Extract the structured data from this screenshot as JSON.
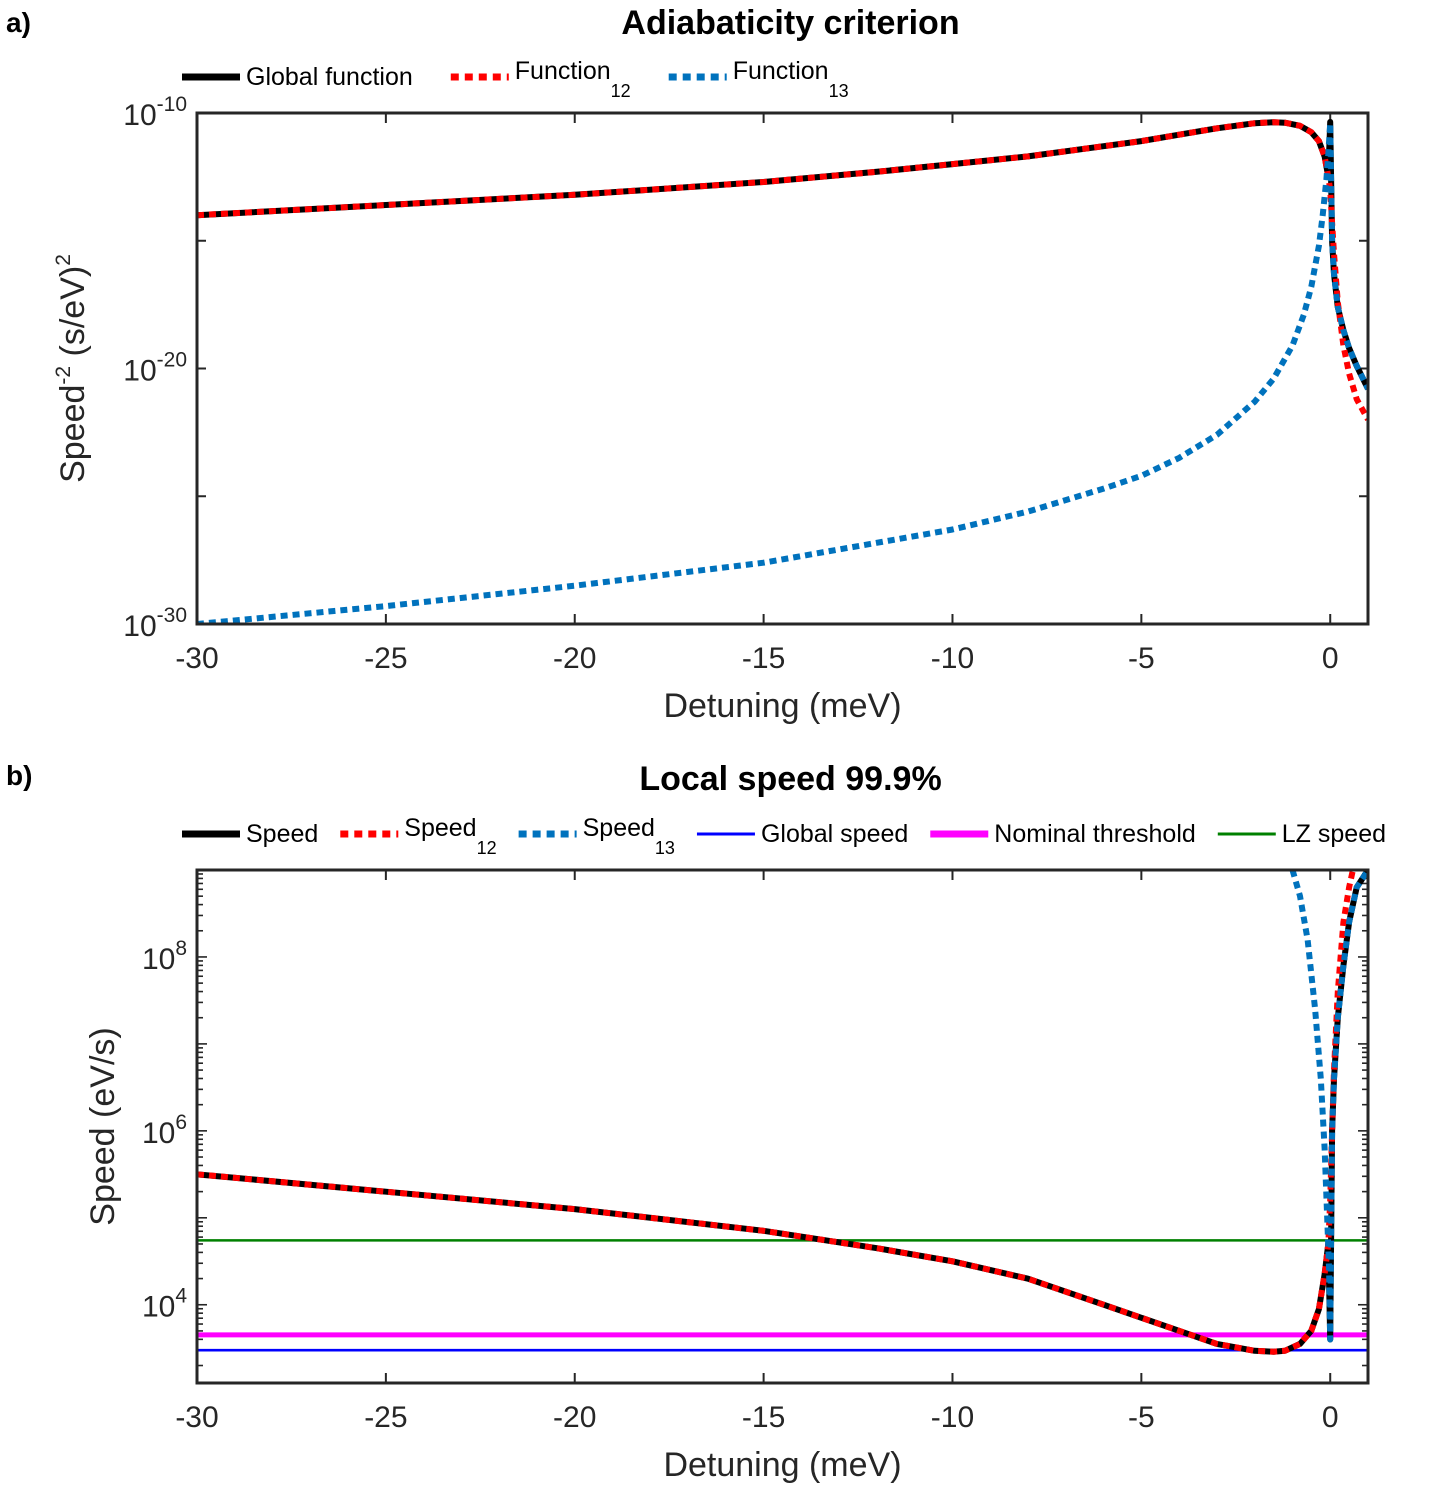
{
  "chart_data": [
    {
      "panel_label": "a)",
      "type": "line",
      "title": "Adiabaticity criterion",
      "xlabel": "Detuning (meV)",
      "ylabel": {
        "base": "Speed",
        "sup": "-2",
        "unit": " (s/eV)",
        "unit_sup": "2"
      },
      "yscale": "log",
      "xlim": [
        -30,
        1
      ],
      "ylim_exp": [
        -30,
        -10
      ],
      "xticks": [
        -30,
        -25,
        -20,
        -15,
        -10,
        -5,
        0
      ],
      "xtick_labels": [
        "-30",
        "-25",
        "-20",
        "-15",
        "-10",
        "-5",
        "0"
      ],
      "yticks_exp": [
        -30,
        -20,
        -10
      ],
      "ytick_base": "10",
      "ytick_exp_labels": [
        "-30",
        "-20",
        "-10"
      ],
      "legend": [
        {
          "label": "Global function",
          "sub": "",
          "color": "#000000",
          "style": "solid"
        },
        {
          "label": "Function",
          "sub": "12",
          "color": "#ff0000",
          "style": "dotted"
        },
        {
          "label": "Function",
          "sub": "13",
          "color": "#0072bd",
          "style": "dotted"
        }
      ],
      "series": [
        {
          "name": "Global function",
          "color": "#000000",
          "style": "solid",
          "x": [
            -30,
            -25,
            -20,
            -15,
            -12,
            -10,
            -8,
            -6,
            -5,
            -4,
            -3,
            -2,
            -1.5,
            -1.2,
            -0.8,
            -0.5,
            -0.3,
            -0.15,
            -0.05,
            0,
            0.05,
            0.1,
            0.2,
            0.35,
            0.5,
            0.7,
            1.0
          ],
          "y_log10": [
            -14.0,
            -13.6,
            -13.2,
            -12.7,
            -12.3,
            -12.0,
            -11.7,
            -11.3,
            -11.1,
            -10.85,
            -10.6,
            -10.4,
            -10.36,
            -10.38,
            -10.5,
            -10.75,
            -11.1,
            -11.7,
            -12.5,
            -10.35,
            -15.0,
            -16.3,
            -17.6,
            -18.5,
            -19.2,
            -19.9,
            -20.8
          ]
        },
        {
          "name": "Function_12",
          "color": "#ff0000",
          "style": "dotted",
          "x": [
            -30,
            -25,
            -20,
            -15,
            -12,
            -10,
            -8,
            -6,
            -5,
            -4,
            -3,
            -2,
            -1.5,
            -1.2,
            -0.8,
            -0.5,
            -0.3,
            -0.15,
            -0.05,
            0,
            0.05,
            0.1,
            0.2,
            0.35,
            0.5,
            0.7,
            1.0
          ],
          "y_log10": [
            -14.0,
            -13.6,
            -13.2,
            -12.7,
            -12.3,
            -12.0,
            -11.7,
            -11.3,
            -11.1,
            -10.85,
            -10.6,
            -10.4,
            -10.36,
            -10.38,
            -10.5,
            -10.75,
            -11.1,
            -11.7,
            -12.5,
            -13.0,
            -14.3,
            -15.5,
            -17.4,
            -19.1,
            -20.2,
            -21.2,
            -22.0
          ]
        },
        {
          "name": "Function_13",
          "color": "#0072bd",
          "style": "dotted",
          "x": [
            -30,
            -25,
            -20,
            -15,
            -10,
            -8,
            -6,
            -5,
            -4,
            -3,
            -2,
            -1.5,
            -1,
            -0.7,
            -0.5,
            -0.3,
            -0.2,
            -0.1,
            -0.05,
            0,
            0.05,
            0.1,
            0.2,
            0.35,
            0.5,
            0.7,
            1.0
          ],
          "y_log10": [
            -30.0,
            -29.3,
            -28.5,
            -27.6,
            -26.3,
            -25.6,
            -24.7,
            -24.2,
            -23.5,
            -22.6,
            -21.3,
            -20.4,
            -19.1,
            -17.9,
            -16.8,
            -15.2,
            -14.0,
            -12.6,
            -11.6,
            -10.4,
            -15.0,
            -16.3,
            -17.6,
            -18.5,
            -19.2,
            -19.9,
            -20.8
          ]
        }
      ]
    },
    {
      "panel_label": "b)",
      "type": "line",
      "title": "Local speed 99.9%",
      "xlabel": "Detuning (meV)",
      "ylabel": {
        "base": "Speed (eV/s)",
        "sup": "",
        "unit": "",
        "unit_sup": ""
      },
      "yscale": "log",
      "xlim": [
        -30,
        1
      ],
      "ylim_exp": [
        3.1,
        9.0
      ],
      "xticks": [
        -30,
        -25,
        -20,
        -15,
        -10,
        -5,
        0
      ],
      "xtick_labels": [
        "-30",
        "-25",
        "-20",
        "-15",
        "-10",
        "-5",
        "0"
      ],
      "yticks_exp": [
        4,
        6,
        8
      ],
      "ytick_base": "10",
      "ytick_exp_labels": [
        "4",
        "6",
        "8"
      ],
      "legend": [
        {
          "label": "Speed",
          "sub": "",
          "color": "#000000",
          "style": "solid"
        },
        {
          "label": "Speed",
          "sub": "12",
          "color": "#ff0000",
          "style": "dotted"
        },
        {
          "label": "Speed",
          "sub": "13",
          "color": "#0072bd",
          "style": "dotted"
        },
        {
          "label": "Global speed",
          "sub": "",
          "color": "#0000ff",
          "style": "solid-thin"
        },
        {
          "label": "Nominal threshold",
          "sub": "",
          "color": "#ff00ff",
          "style": "solid"
        },
        {
          "label": "LZ speed",
          "sub": "",
          "color": "#008000",
          "style": "solid-thin"
        }
      ],
      "hlines": [
        {
          "name": "LZ speed",
          "y": 55000,
          "color": "#008000"
        },
        {
          "name": "Nominal threshold",
          "y": 4500,
          "color": "#ff00ff"
        },
        {
          "name": "Global speed",
          "y": 3000,
          "color": "#0000ff"
        }
      ],
      "series": [
        {
          "name": "Speed",
          "color": "#000000",
          "style": "solid",
          "x": [
            -30,
            -25,
            -20,
            -15,
            -12,
            -10,
            -8,
            -6,
            -5,
            -4,
            -3,
            -2,
            -1.5,
            -1.2,
            -0.8,
            -0.5,
            -0.3,
            -0.15,
            -0.05,
            0,
            0.05,
            0.1,
            0.2,
            0.35,
            0.5,
            0.7,
            1.0
          ],
          "y_log10": [
            5.5,
            5.3,
            5.1,
            4.85,
            4.65,
            4.5,
            4.3,
            4.0,
            3.85,
            3.7,
            3.55,
            3.47,
            3.46,
            3.47,
            3.55,
            3.7,
            3.95,
            4.35,
            4.7,
            3.6,
            6.0,
            6.6,
            7.3,
            7.9,
            8.4,
            8.8,
            9.0
          ]
        },
        {
          "name": "Speed_12",
          "color": "#ff0000",
          "style": "dotted",
          "x": [
            -30,
            -25,
            -20,
            -15,
            -12,
            -10,
            -8,
            -6,
            -5,
            -4,
            -3,
            -2,
            -1.5,
            -1.2,
            -0.8,
            -0.5,
            -0.3,
            -0.15,
            -0.05,
            0,
            0.05,
            0.1,
            0.2,
            0.35,
            0.5,
            0.6
          ],
          "y_log10": [
            5.5,
            5.3,
            5.1,
            4.85,
            4.65,
            4.5,
            4.3,
            4.0,
            3.85,
            3.7,
            3.55,
            3.47,
            3.46,
            3.47,
            3.55,
            3.7,
            3.95,
            4.35,
            4.7,
            5.2,
            6.0,
            6.7,
            7.6,
            8.4,
            8.8,
            9.0
          ]
        },
        {
          "name": "Speed_13",
          "color": "#0072bd",
          "style": "dotted",
          "x": [
            -1.0,
            -0.8,
            -0.6,
            -0.4,
            -0.25,
            -0.15,
            -0.08,
            -0.03,
            0,
            0.05,
            0.1,
            0.2,
            0.35,
            0.5,
            0.7,
            1.0
          ],
          "y_log10": [
            9.0,
            8.7,
            8.2,
            7.4,
            6.6,
            5.8,
            5.0,
            4.4,
            3.6,
            6.0,
            6.6,
            7.3,
            7.9,
            8.4,
            8.8,
            9.0
          ]
        }
      ]
    }
  ]
}
